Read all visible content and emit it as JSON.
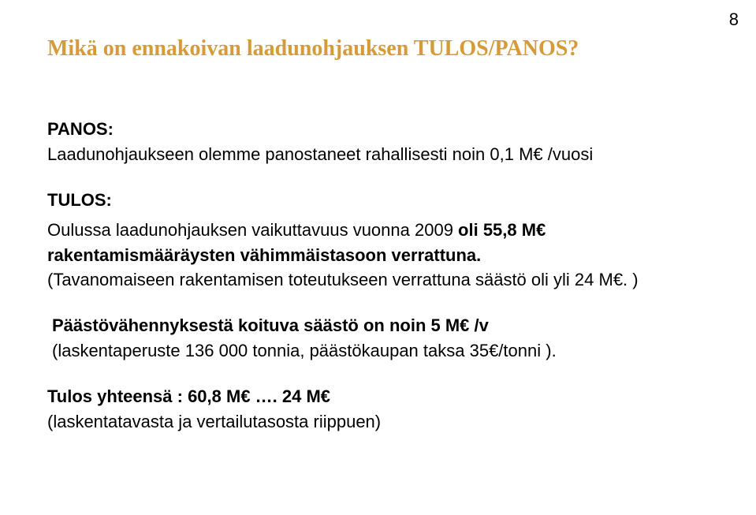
{
  "page_number": "8",
  "title": "Mikä on ennakoivan laadunohjauksen TULOS/PANOS?",
  "panos": {
    "label": "PANOS:",
    "text": "Laadunohjaukseen olemme panostaneet rahallisesti noin 0,1 M€ /vuosi"
  },
  "tulos": {
    "label": "TULOS:",
    "line1_plain_before": "Oulussa laadunohjauksen vaikuttavuus vuonna 2009 ",
    "line1_bold": "oli 55,8 M€ rakentamismääräysten vähimmäistasoon verrattuna.",
    "line2": "(Tavanomaiseen rakentamisen toteutukseen verrattuna säästö oli yli 24 M€. )",
    "line3_bold": "Päästövähennyksestä koituva säästö on noin 5 M€ /v",
    "line4": "(laskentaperuste 136 000 tonnia, päästökaupan taksa 35€/tonni ).",
    "total_bold": "Tulos yhteensä : 60,8 M€ …. 24 M€",
    "total_sub": "(laskentatavasta ja vertailutasosta riippuen)"
  },
  "colors": {
    "title": "#d59b3a",
    "text": "#000000",
    "background": "#ffffff"
  }
}
